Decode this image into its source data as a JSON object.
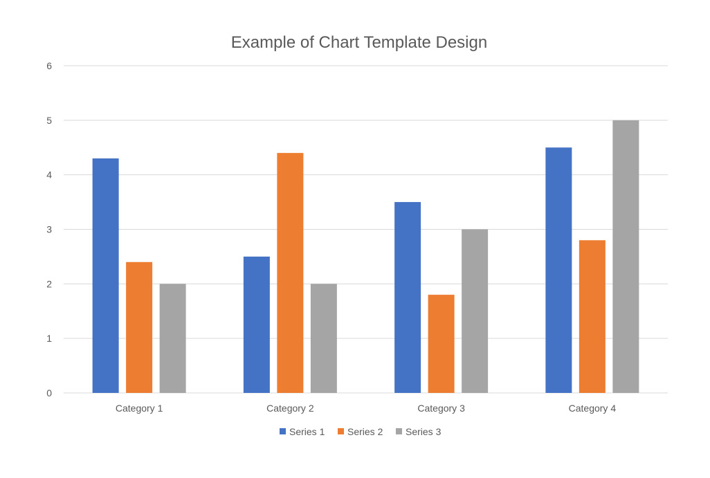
{
  "chart_data": {
    "type": "bar",
    "title": "Example of Chart Template Design",
    "xlabel": "",
    "ylabel": "",
    "categories": [
      "Category 1",
      "Category 2",
      "Category 3",
      "Category 4"
    ],
    "series": [
      {
        "name": "Series 1",
        "color": "#4472C4",
        "values": [
          4.3,
          2.5,
          3.5,
          4.5
        ]
      },
      {
        "name": "Series 2",
        "color": "#ED7D31",
        "values": [
          2.4,
          4.4,
          1.8,
          2.8
        ]
      },
      {
        "name": "Series 3",
        "color": "#A5A5A5",
        "values": [
          2,
          2,
          3,
          5
        ]
      }
    ],
    "ylim": [
      0,
      6
    ],
    "yticks": [
      "0",
      "1",
      "2",
      "3",
      "4",
      "5",
      "6"
    ],
    "grid": true,
    "legend": "bottom"
  }
}
